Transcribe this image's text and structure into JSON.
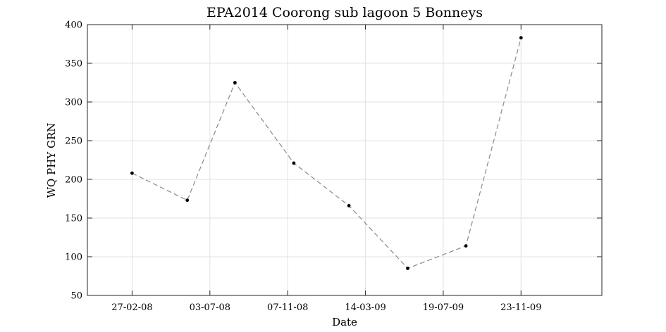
{
  "chart_data": {
    "type": "line",
    "title": "EPA2014 Coorong sub lagoon 5 Bonneys",
    "xlabel": "Date",
    "ylabel": "WQ PHY GRN",
    "xlim": [
      "2007-12-16",
      "2010-04-04"
    ],
    "ylim": [
      50,
      400
    ],
    "xticks": [
      {
        "date": "2008-02-27",
        "label": "27-02-08"
      },
      {
        "date": "2008-07-03",
        "label": "03-07-08"
      },
      {
        "date": "2008-11-07",
        "label": "07-11-08"
      },
      {
        "date": "2009-03-14",
        "label": "14-03-09"
      },
      {
        "date": "2009-07-19",
        "label": "19-07-09"
      },
      {
        "date": "2009-11-23",
        "label": "23-11-09"
      }
    ],
    "yticks": [
      50,
      100,
      150,
      200,
      250,
      300,
      350,
      400
    ],
    "grid": true,
    "series": [
      {
        "line_style": "dashed",
        "line_color": "#8a8a8a",
        "marker_color": "#000000",
        "points": [
          {
            "x": "2008-02-27",
            "y": 208
          },
          {
            "x": "2008-05-27",
            "y": 173
          },
          {
            "x": "2008-08-13",
            "y": 325
          },
          {
            "x": "2008-11-17",
            "y": 221
          },
          {
            "x": "2009-02-15",
            "y": 166
          },
          {
            "x": "2009-05-22",
            "y": 85
          },
          {
            "x": "2009-08-25",
            "y": 114
          },
          {
            "x": "2009-11-23",
            "y": 383
          }
        ]
      }
    ]
  }
}
